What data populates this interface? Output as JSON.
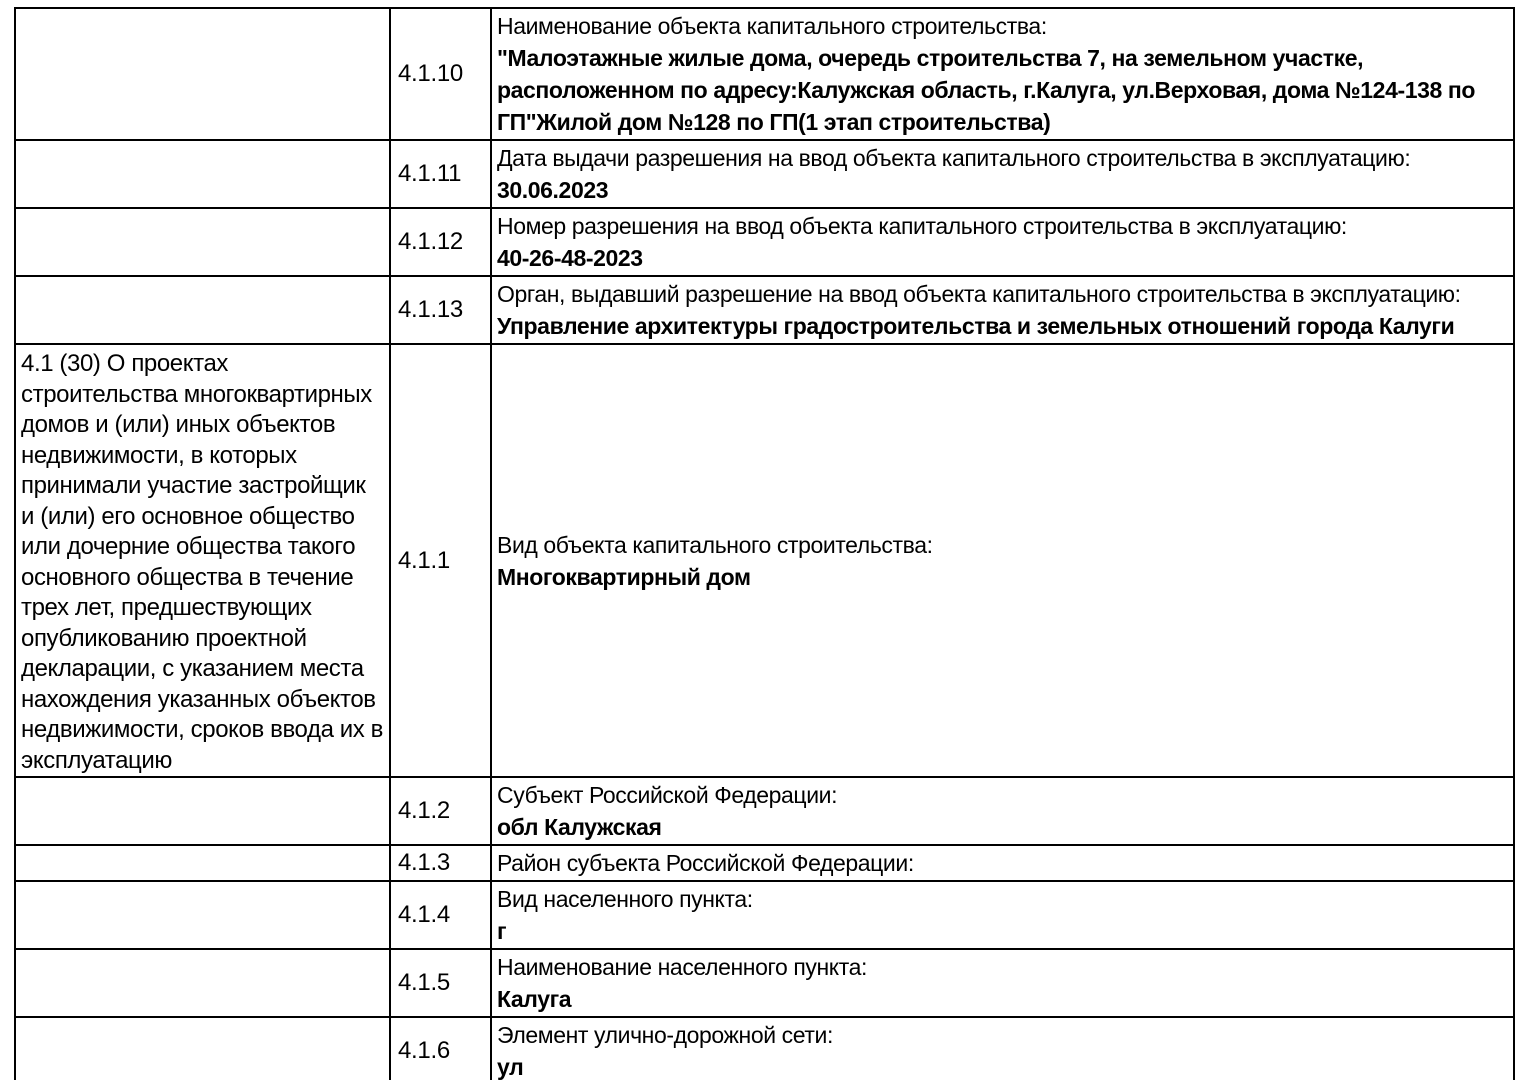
{
  "document": {
    "colors": {
      "text": "#000000",
      "border": "#000000",
      "background": "#ffffff"
    },
    "section_note": "4.1 (30) О проектах строительства многоквартирных домов и (или) иных объектов недвижимости, в которых принимали участие застройщик и (или) его основное общество или дочерние общества такого основного общества в течение трех лет, предшествующих опубликованию проектной декларации, с указанием места нахождения указанных объектов недвижимости, сроков ввода их в эксплуатацию",
    "rows": [
      {
        "code": "4.1.10",
        "label": "Наименование объекта капитального строительства:",
        "value": "\"Малоэтажные жилые дома, очередь строительства 7, на земельном участке, расположенном по адресу:Калужская область, г.Калуга, ул.Верховая, дома №124-138 по ГП\"Жилой дом №128 по ГП(1 этап строительства)"
      },
      {
        "code": "4.1.11",
        "label": "Дата выдачи разрешения на ввод объекта капитального строительства в эксплуатацию:",
        "value": "30.06.2023"
      },
      {
        "code": "4.1.12",
        "label": "Номер разрешения на ввод объекта капитального строительства в эксплуатацию:",
        "value": "40-26-48-2023"
      },
      {
        "code": "4.1.13",
        "label": "Орган, выдавший разрешение на ввод объекта капитального строительства в эксплуатацию:",
        "value": "Управление архитектуры градостроительства и земельных отношений города Калуги"
      },
      {
        "code": "4.1.1",
        "label": "Вид объекта капитального строительства:",
        "value": "Многоквартирный дом"
      },
      {
        "code": "4.1.2",
        "label": "Субъект Российской Федерации:",
        "value": "обл Калужская"
      },
      {
        "code": "4.1.3",
        "label": "Район субъекта Российской Федерации:",
        "value": ""
      },
      {
        "code": "4.1.4",
        "label": "Вид населенного пункта:",
        "value": "г"
      },
      {
        "code": "4.1.5",
        "label": "Наименование населенного пункта:",
        "value": "Калуга"
      },
      {
        "code": "4.1.6",
        "label": "Элемент улично-дорожной сети:",
        "value": "ул"
      }
    ]
  }
}
